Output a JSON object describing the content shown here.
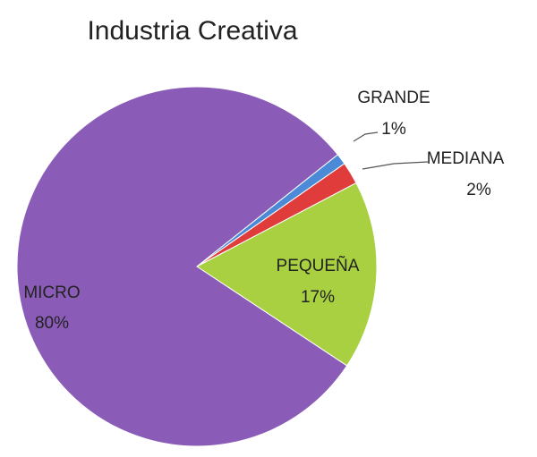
{
  "chart_data": {
    "type": "pie",
    "title": "Industria Creativa",
    "categories": [
      "GRANDE",
      "MEDIANA",
      "PEQUEÑA",
      "MICRO"
    ],
    "values": [
      1,
      2,
      17,
      80
    ],
    "value_labels": [
      "1%",
      "2%",
      "17%",
      "80%"
    ],
    "colors": [
      "#4a8ad6",
      "#e03c3c",
      "#a8d040",
      "#8a5cb8"
    ]
  }
}
